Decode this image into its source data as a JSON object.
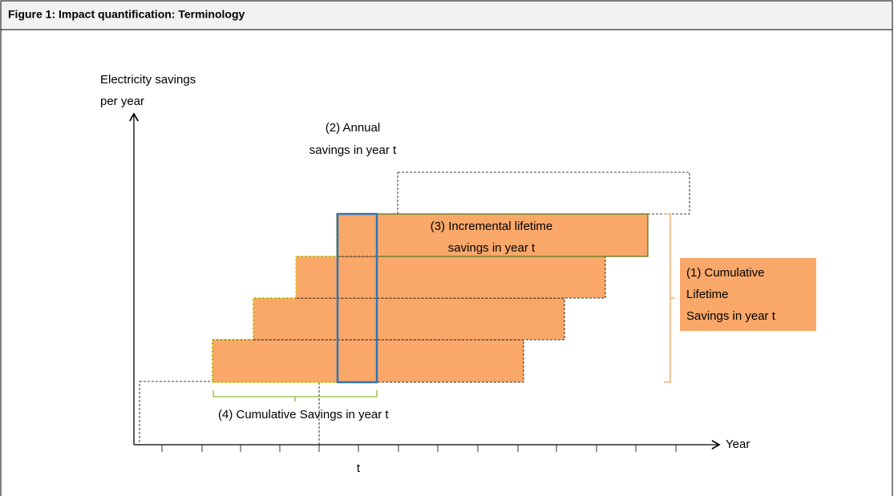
{
  "header": {
    "title": "Figure 1: Impact quantification: Terminology"
  },
  "axes": {
    "y_label": [
      "Electricity savings",
      "per year"
    ],
    "x_label": "Year",
    "x_tick": "t"
  },
  "annotations": {
    "annual": [
      "(2) Annual",
      "savings in year t"
    ],
    "incremental": [
      "(3) Incremental lifetime",
      "savings in year t"
    ],
    "cumulative_lifetime": [
      "(1) Cumulative",
      "Lifetime",
      "Savings in year t"
    ],
    "cumulative": "(4) Cumulative  Savings in year t"
  }
}
